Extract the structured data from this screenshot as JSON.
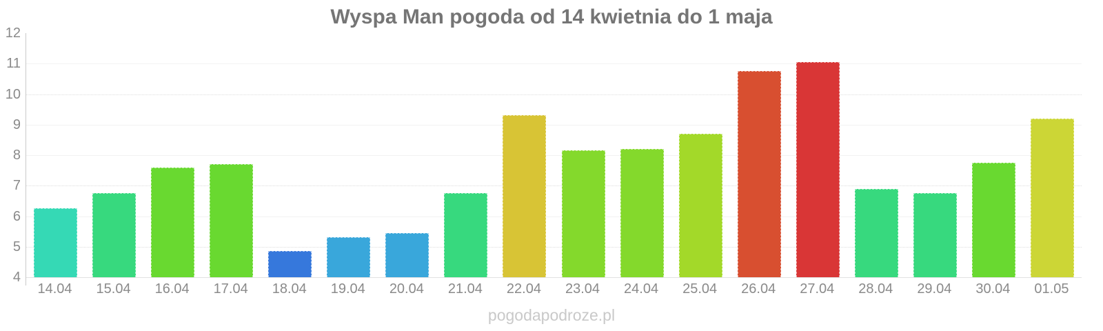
{
  "page": {
    "title": "Wyspa Man pogoda od 14 kwietnia do 1 maja",
    "watermark": "pogodapodroze.pl"
  },
  "colors": {
    "background": "#ffffff",
    "title_text": "#757575",
    "axis_label_text": "#8a8a8a",
    "grid_solid": "#f2f2f2",
    "grid_dotted": "#dcdcdc",
    "axis_line": "#c9c9c9",
    "watermark_text": "#c9c9c9"
  },
  "chart_data": {
    "type": "bar",
    "title": "Wyspa Man pogoda od 14 kwietnia do 1 maja",
    "xlabel": "",
    "ylabel": "",
    "ylim": [
      4,
      12
    ],
    "yticks": [
      4,
      5,
      6,
      7,
      8,
      9,
      10,
      11,
      12
    ],
    "dotted_gridline_values": [
      5,
      7,
      10
    ],
    "grid": true,
    "legend": false,
    "categories": [
      "14.04",
      "15.04",
      "16.04",
      "17.04",
      "18.04",
      "19.04",
      "20.04",
      "21.04",
      "22.04",
      "23.04",
      "24.04",
      "25.04",
      "26.04",
      "27.04",
      "28.04",
      "29.04",
      "30.04",
      "01.05"
    ],
    "values": [
      6.25,
      6.75,
      7.6,
      7.7,
      4.85,
      5.3,
      5.45,
      6.75,
      9.3,
      8.15,
      8.2,
      8.7,
      10.75,
      11.05,
      6.9,
      6.75,
      7.75,
      9.2
    ],
    "bar_colors": [
      "#35d9b5",
      "#37d97e",
      "#69d930",
      "#69d930",
      "#3678dc",
      "#39a7db",
      "#39a7db",
      "#37d97e",
      "#d8c435",
      "#84d92c",
      "#84d92c",
      "#a3d929",
      "#d84f30",
      "#d93636",
      "#37d97e",
      "#37d97e",
      "#69d930",
      "#ccd636"
    ]
  }
}
